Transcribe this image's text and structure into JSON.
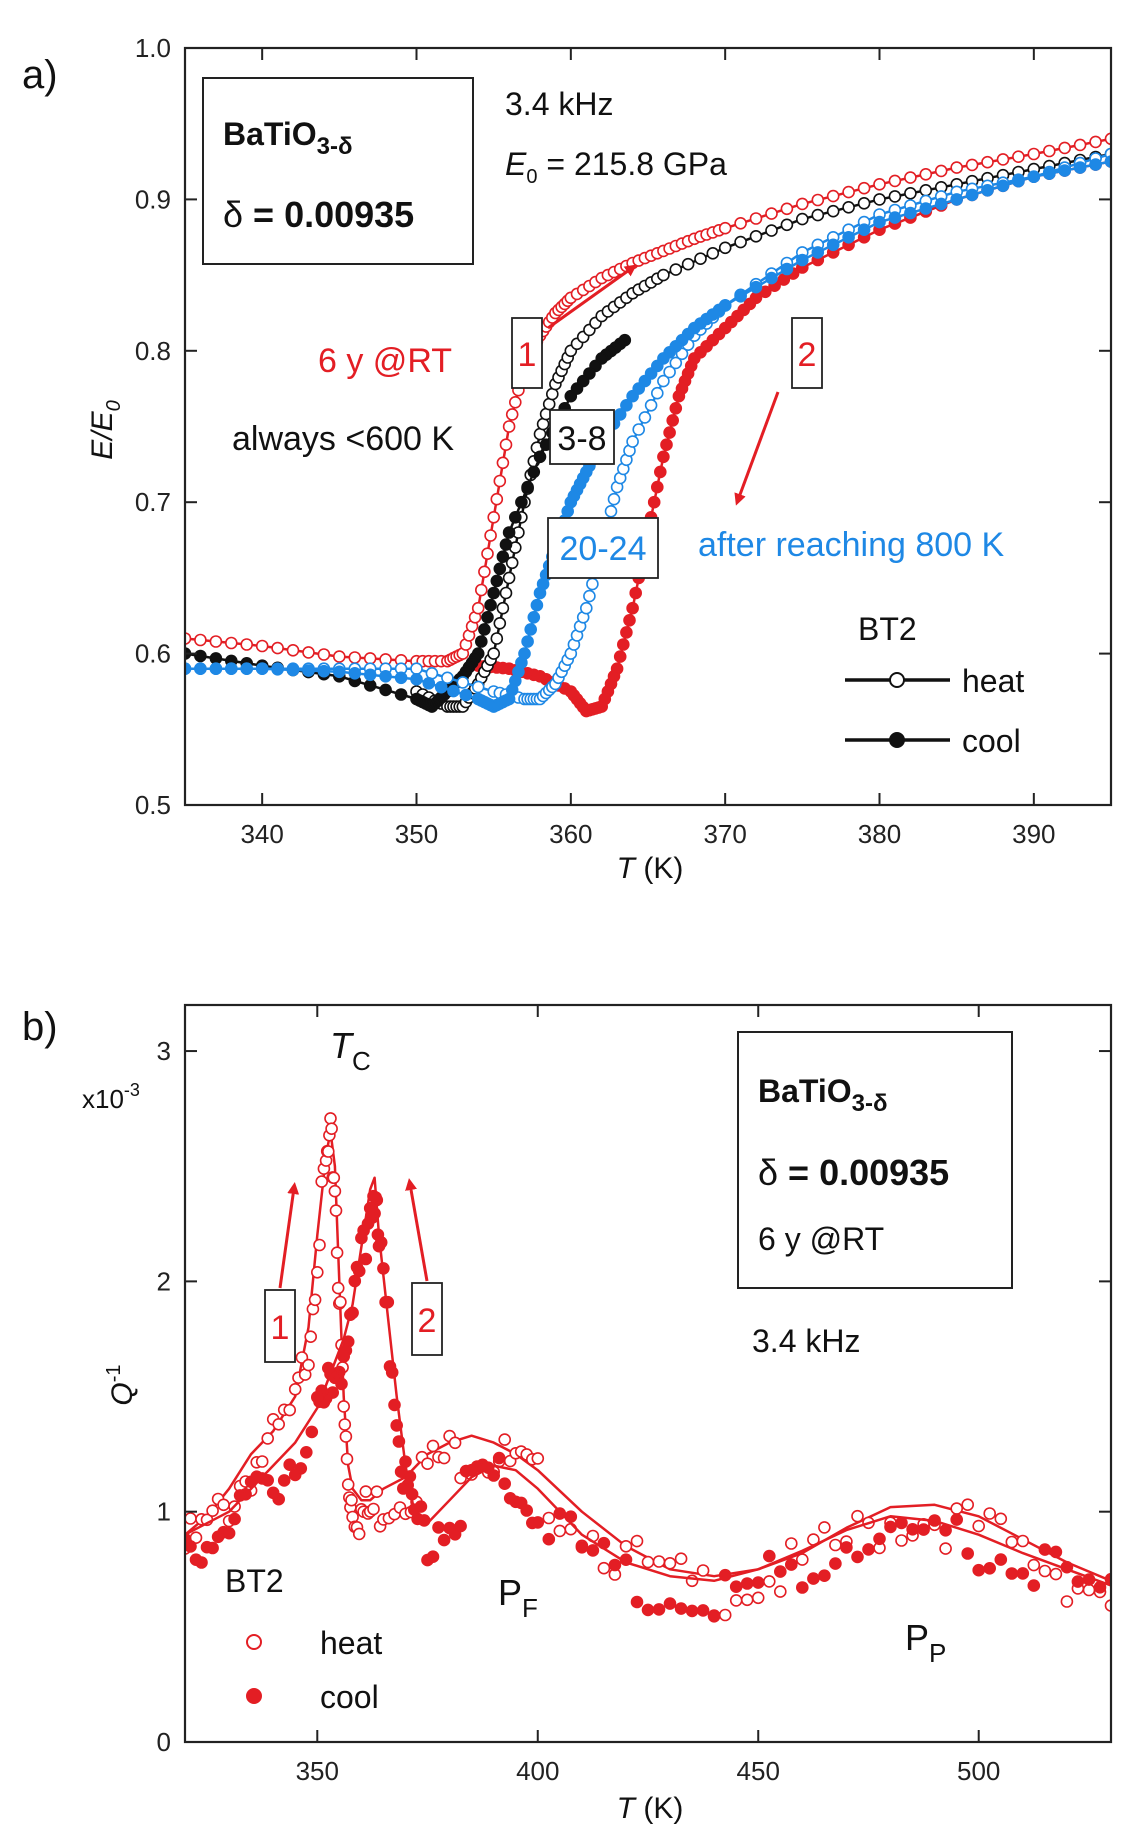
{
  "colors": {
    "red": "#e31e24",
    "blue": "#1e88e5",
    "black": "#111111",
    "axis": "#222222"
  },
  "panel_a": {
    "label": "a)",
    "freq_text": "3.4 kHz",
    "e0_sym": "E",
    "e0_sub": "0",
    "e0_value": " = 215.8 GPa",
    "box_formula": "BaTiO",
    "box_formula_sub": "3-δ",
    "box_delta": "δ",
    "box_delta_val": " = 0.00935",
    "ann_6y": "6 y @RT",
    "ann_always": "always <600 K",
    "ann_after": "after reaching 800 K",
    "tag_1": "1",
    "tag_2": "2",
    "tag_38": "3-8",
    "tag_2024": "20-24",
    "legend_title": "BT2",
    "legend_heat": "heat",
    "legend_cool": "cool",
    "ylabel_sym": "E/E",
    "ylabel_sub": "0",
    "xlabel_sym": "T",
    "xlabel_unit": " (K)"
  },
  "panel_b": {
    "label": "b)",
    "multiplier": "x10",
    "multiplier_exp": "-3",
    "tc_sym": "T",
    "tc_sub": "C",
    "box_formula": "BaTiO",
    "box_formula_sub": "3-δ",
    "box_delta": "δ",
    "box_delta_val": " = 0.00935",
    "box_age": "6 y @RT",
    "freq_text": "3.4 kHz",
    "tag_1": "1",
    "tag_2": "2",
    "pf_sym": "P",
    "pf_sub": "F",
    "pp_sym": "P",
    "pp_sub": "P",
    "legend_title": "BT2",
    "legend_heat": "heat",
    "legend_cool": "cool",
    "ylabel_sym": "Q",
    "ylabel_exp": "-1",
    "xlabel_sym": "T",
    "xlabel_unit": " (K)"
  },
  "chart_data": [
    {
      "type": "scatter",
      "title": "",
      "xlabel": "T (K)",
      "ylabel": "E/E0",
      "xlim": [
        335,
        395
      ],
      "ylim": [
        0.5,
        1.0
      ],
      "xticks": [
        340,
        350,
        360,
        370,
        380,
        390
      ],
      "yticks": [
        0.5,
        0.6,
        0.7,
        0.8,
        0.9,
        1.0
      ],
      "series": [
        {
          "name": "red heat (1, 6 y @RT)",
          "color": "#e31e24",
          "marker": "open",
          "x": [
            335,
            340,
            345,
            350,
            352,
            353,
            354,
            355,
            356,
            357,
            358,
            359,
            360,
            362,
            364,
            366,
            368,
            370,
            375,
            380,
            385,
            390,
            395
          ],
          "y": [
            0.61,
            0.605,
            0.598,
            0.595,
            0.595,
            0.6,
            0.63,
            0.69,
            0.75,
            0.79,
            0.81,
            0.825,
            0.835,
            0.848,
            0.858,
            0.866,
            0.874,
            0.881,
            0.897,
            0.91,
            0.921,
            0.93,
            0.94
          ]
        },
        {
          "name": "red cool (2, 6 y @RT)",
          "color": "#e31e24",
          "marker": "filled",
          "x": [
            395,
            390,
            385,
            380,
            375,
            372,
            370,
            368,
            367,
            366,
            365,
            364,
            363,
            362,
            361,
            360,
            358,
            356,
            354
          ],
          "y": [
            0.925,
            0.915,
            0.9,
            0.88,
            0.855,
            0.835,
            0.815,
            0.795,
            0.77,
            0.73,
            0.68,
            0.63,
            0.59,
            0.565,
            0.562,
            0.575,
            0.585,
            0.59,
            0.592
          ]
        },
        {
          "name": "black heat (3-8, always <600 K)",
          "color": "#111111",
          "marker": "open",
          "x": [
            350,
            352,
            353,
            354,
            355,
            356,
            357,
            358,
            359,
            360,
            362,
            364,
            366,
            370,
            375,
            380,
            385,
            390,
            395
          ],
          "y": [
            0.575,
            0.565,
            0.565,
            0.58,
            0.6,
            0.65,
            0.7,
            0.745,
            0.778,
            0.8,
            0.823,
            0.838,
            0.85,
            0.868,
            0.887,
            0.9,
            0.91,
            0.92,
            0.93
          ]
        },
        {
          "name": "black cool (3-8, always <600 K)",
          "color": "#111111",
          "marker": "filled",
          "x": [
            363.5,
            362,
            360,
            358,
            356,
            355,
            354,
            353,
            352,
            351,
            350,
            345,
            340,
            335
          ],
          "y": [
            0.807,
            0.795,
            0.77,
            0.73,
            0.68,
            0.64,
            0.6,
            0.585,
            0.575,
            0.565,
            0.57,
            0.585,
            0.592,
            0.6
          ]
        },
        {
          "name": "blue heat (20-24, after reaching 800 K)",
          "color": "#1e88e5",
          "marker": "open",
          "x": [
            335,
            340,
            345,
            350,
            355,
            357,
            358,
            359,
            360,
            361,
            362,
            363,
            364,
            366,
            368,
            370,
            375,
            380,
            385,
            390,
            395
          ],
          "y": [
            0.59,
            0.59,
            0.59,
            0.59,
            0.575,
            0.57,
            0.57,
            0.58,
            0.6,
            0.63,
            0.67,
            0.71,
            0.74,
            0.78,
            0.81,
            0.83,
            0.865,
            0.89,
            0.905,
            0.915,
            0.93
          ]
        },
        {
          "name": "blue cool (20-24, after reaching 800 K)",
          "color": "#1e88e5",
          "marker": "filled",
          "x": [
            395,
            390,
            385,
            380,
            375,
            370,
            368,
            366,
            364,
            362,
            361,
            360,
            359,
            358,
            357,
            356,
            355,
            354,
            350,
            345,
            340,
            335
          ],
          "y": [
            0.925,
            0.915,
            0.9,
            0.885,
            0.86,
            0.83,
            0.815,
            0.795,
            0.77,
            0.74,
            0.72,
            0.7,
            0.67,
            0.64,
            0.6,
            0.57,
            0.565,
            0.57,
            0.583,
            0.588,
            0.59,
            0.59
          ]
        }
      ],
      "legend": {
        "title": "BT2",
        "entries": [
          "heat",
          "cool"
        ],
        "placement": "bottom-right"
      },
      "annotations": [
        "3.4 kHz",
        "E0 = 215.8 GPa",
        "BaTiO3-δ",
        "δ = 0.00935",
        "6 y @RT",
        "always <600 K",
        "after reaching 800 K",
        "1",
        "2",
        "3-8",
        "20-24"
      ]
    },
    {
      "type": "scatter",
      "title": "",
      "xlabel": "T (K)",
      "ylabel": "Q^-1",
      "multiplier": "x10^-3",
      "xlim": [
        320,
        530
      ],
      "ylim": [
        0,
        3.2
      ],
      "xticks": [
        350,
        400,
        450,
        500
      ],
      "yticks": [
        0,
        1,
        2,
        3
      ],
      "series": [
        {
          "name": "heat (1)",
          "color": "#e31e24",
          "marker": "open",
          "x": [
            320,
            325,
            330,
            335,
            340,
            345,
            348,
            350,
            352,
            353,
            354,
            355,
            356,
            357,
            358,
            360,
            362,
            365,
            370,
            375,
            380,
            385,
            390,
            395,
            400,
            410,
            420,
            430,
            440,
            450,
            460,
            470,
            480,
            490,
            500,
            510,
            520,
            530
          ],
          "y": [
            0.9,
            0.98,
            1.1,
            1.25,
            1.35,
            1.5,
            1.8,
            2.2,
            2.55,
            2.65,
            2.5,
            2.0,
            1.5,
            1.2,
            1.1,
            1.05,
            1.05,
            1.1,
            1.15,
            1.25,
            1.3,
            1.33,
            1.3,
            1.25,
            1.18,
            1.0,
            0.85,
            0.75,
            0.72,
            0.75,
            0.82,
            0.93,
            1.02,
            1.03,
            0.98,
            0.88,
            0.78,
            0.7
          ]
        },
        {
          "name": "cool (2)",
          "color": "#e31e24",
          "marker": "filled",
          "x": [
            530,
            520,
            510,
            500,
            490,
            480,
            470,
            460,
            450,
            440,
            430,
            420,
            410,
            400,
            395,
            390,
            385,
            380,
            375,
            372,
            370,
            368,
            366,
            364,
            363,
            362,
            360,
            358,
            356,
            354,
            352,
            350,
            345,
            340,
            335,
            330,
            325,
            320
          ],
          "y": [
            0.68,
            0.75,
            0.82,
            0.9,
            0.96,
            0.98,
            0.92,
            0.83,
            0.75,
            0.7,
            0.72,
            0.78,
            0.9,
            1.1,
            1.18,
            1.2,
            1.15,
            1.05,
            0.95,
            1.0,
            1.2,
            1.5,
            1.85,
            2.2,
            2.45,
            2.4,
            2.15,
            1.9,
            1.75,
            1.65,
            1.55,
            1.45,
            1.3,
            1.2,
            1.1,
            1.0,
            0.95,
            0.9
          ]
        }
      ],
      "legend": {
        "title": "BT2",
        "entries": [
          "heat",
          "cool"
        ],
        "placement": "bottom-left"
      },
      "annotations": [
        "TC",
        "PF",
        "PP",
        "BaTiO3-δ",
        "δ = 0.00935",
        "6 y @RT",
        "3.4 kHz",
        "1",
        "2"
      ]
    }
  ]
}
